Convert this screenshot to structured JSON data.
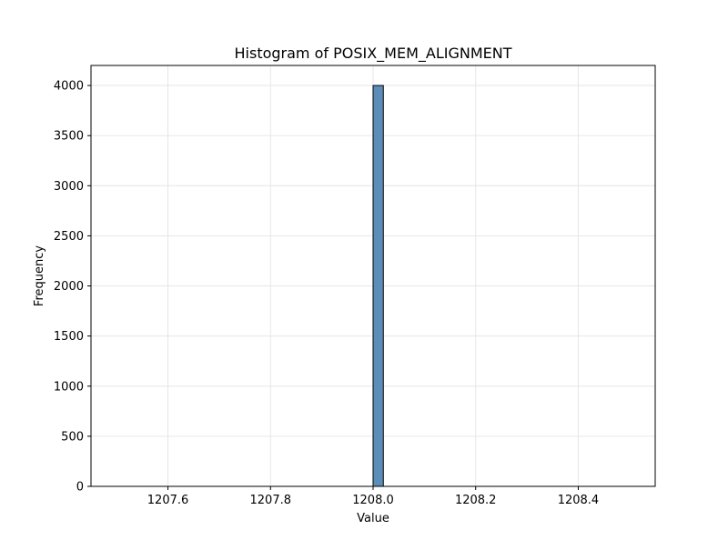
{
  "chart_data": {
    "type": "bar",
    "title": "Histogram of POSIX_MEM_ALIGNMENT",
    "xlabel": "Value",
    "ylabel": "Frequency",
    "xlim": [
      1207.45,
      1208.55
    ],
    "ylim": [
      0,
      4200
    ],
    "xticks": [
      1207.6,
      1207.8,
      1208.0,
      1208.2,
      1208.4
    ],
    "xtick_labels": [
      "1207.6",
      "1207.8",
      "1208.0",
      "1208.2",
      "1208.4"
    ],
    "yticks": [
      0,
      500,
      1000,
      1500,
      2000,
      2500,
      3000,
      3500,
      4000
    ],
    "ytick_labels": [
      "0",
      "500",
      "1000",
      "1500",
      "2000",
      "2500",
      "3000",
      "3500",
      "4000"
    ],
    "grid": true,
    "bins": [
      {
        "x_start": 1208.0,
        "x_end": 1208.02,
        "count": 4000
      }
    ],
    "colors": {
      "bar_fill": "#5b8db8",
      "bar_stroke": "#000000",
      "grid": "#e6e6e6"
    }
  }
}
